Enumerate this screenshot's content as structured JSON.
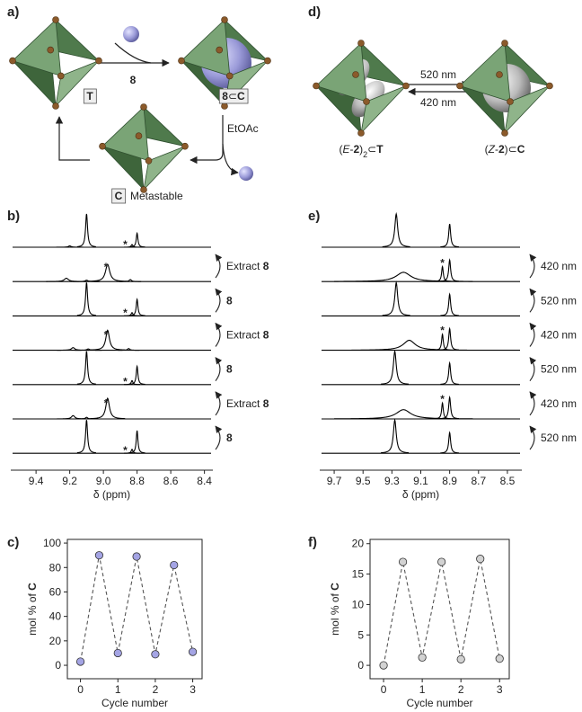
{
  "panel_labels": [
    "a)",
    "b)",
    "c)",
    "d)",
    "e)",
    "f)"
  ],
  "scheme_a": {
    "reagent": [
      {
        "text": "8",
        "style": "bold"
      }
    ],
    "label_T": [
      {
        "text": "T",
        "style": "bold"
      }
    ],
    "label_8C": [
      {
        "text": "8",
        "style": "bold"
      },
      {
        "text": "⊂"
      },
      {
        "text": "C",
        "style": "bold"
      }
    ],
    "label_C": [
      {
        "text": "C",
        "style": "bold"
      }
    ],
    "metastable": "Metastable",
    "solvent": "EtOAc"
  },
  "scheme_d": {
    "forward": {
      "text": "520 nm",
      "color": "#2eb12e"
    },
    "backward": {
      "text": "420 nm",
      "color": "#1ea5e8"
    },
    "label_left": [
      {
        "text": "("
      },
      {
        "text": "E",
        "style": "italic"
      },
      {
        "text": "-"
      },
      {
        "text": "2",
        "style": "bold"
      },
      {
        "text": ")"
      },
      {
        "text": "2",
        "style": "sub"
      },
      {
        "text": "⊂"
      },
      {
        "text": "T",
        "style": "bold"
      }
    ],
    "label_right": [
      {
        "text": "("
      },
      {
        "text": "Z",
        "style": "italic"
      },
      {
        "text": "-"
      },
      {
        "text": "2",
        "style": "bold"
      },
      {
        "text": ")⊂"
      },
      {
        "text": "C",
        "style": "bold"
      }
    ]
  },
  "chart_data": [
    {
      "type": "spectra",
      "x_label": "δ (ppm)",
      "xlim": [
        9.55,
        8.35
      ],
      "xticks": [
        9.4,
        9.2,
        {
          "value": 9,
          "label": "9.0"
        },
        8.8,
        8.6,
        8.4
      ],
      "color": "#000000",
      "star_color": "#e02020",
      "traces": [
        {
          "peaks": [
            {
              "x": 9.2,
              "height": 4,
              "width": 0.01
            },
            {
              "x": 9.1,
              "height": 100,
              "width": 0.007
            },
            {
              "x": 8.83,
              "height": 8,
              "width": 0.006
            },
            {
              "x": 8.8,
              "height": 42,
              "width": 0.006
            }
          ],
          "star": {
            "text": "*",
            "x": 8.87
          }
        },
        {
          "peaks": [
            {
              "x": 9.22,
              "height": 10,
              "width": 0.015
            },
            {
              "x": 9.1,
              "height": 4,
              "width": 0.01
            },
            {
              "x": 8.975,
              "height": 52,
              "width": 0.015
            },
            {
              "x": 8.84,
              "height": 6,
              "width": 0.008
            }
          ],
          "star": {
            "text": "*",
            "x": 8.985
          }
        },
        {
          "peaks": [
            {
              "x": 9.1,
              "height": 100,
              "width": 0.007
            },
            {
              "x": 8.83,
              "height": 10,
              "width": 0.006
            },
            {
              "x": 8.8,
              "height": 50,
              "width": 0.006
            }
          ],
          "star": {
            "text": "*",
            "x": 8.87
          }
        },
        {
          "peaks": [
            {
              "x": 9.18,
              "height": 8,
              "width": 0.012
            },
            {
              "x": 9.09,
              "height": 4,
              "width": 0.01
            },
            {
              "x": 8.975,
              "height": 60,
              "width": 0.013
            },
            {
              "x": 8.85,
              "height": 5,
              "width": 0.008
            }
          ],
          "star": {
            "text": "*",
            "x": 8.985
          }
        },
        {
          "peaks": [
            {
              "x": 9.1,
              "height": 100,
              "width": 0.007
            },
            {
              "x": 8.83,
              "height": 12,
              "width": 0.006
            },
            {
              "x": 8.8,
              "height": 55,
              "width": 0.006
            }
          ],
          "star": {
            "text": "*",
            "x": 8.87
          }
        },
        {
          "peaks": [
            {
              "x": 9.18,
              "height": 10,
              "width": 0.012
            },
            {
              "x": 9.1,
              "height": 5,
              "width": 0.008
            },
            {
              "x": 8.975,
              "height": 62,
              "width": 0.013
            }
          ],
          "star": {
            "text": "*",
            "x": 8.985
          }
        },
        {
          "peaks": [
            {
              "x": 9.1,
              "height": 100,
              "width": 0.007
            },
            {
              "x": 8.83,
              "height": 12,
              "width": 0.006
            },
            {
              "x": 8.8,
              "height": 68,
              "width": 0.006
            }
          ],
          "star": {
            "text": "*",
            "x": 8.87
          }
        }
      ],
      "annotations": [
        {
          "parts": [
            {
              "text": "Extract "
            },
            {
              "text": "8",
              "style": "bold"
            }
          ]
        },
        {
          "parts": [
            {
              "text": "8",
              "style": "bold"
            }
          ]
        },
        {
          "parts": [
            {
              "text": "Extract "
            },
            {
              "text": "8",
              "style": "bold"
            }
          ]
        },
        {
          "parts": [
            {
              "text": "8",
              "style": "bold"
            }
          ]
        },
        {
          "parts": [
            {
              "text": "Extract "
            },
            {
              "text": "8",
              "style": "bold"
            }
          ]
        },
        {
          "parts": [
            {
              "text": "8",
              "style": "bold"
            }
          ]
        }
      ]
    },
    {
      "type": "spectra",
      "x_label": "δ (ppm)",
      "xlim": [
        9.8,
        8.4
      ],
      "xticks": [
        9.7,
        9.5,
        9.3,
        9.1,
        8.9,
        8.7,
        8.5
      ],
      "color": "#000000",
      "star_color": "#e02020",
      "traces": [
        {
          "peaks": [
            {
              "x": 9.27,
              "height": 100,
              "width": 0.012
            },
            {
              "x": 8.9,
              "height": 70,
              "width": 0.008
            }
          ]
        },
        {
          "peaks": [
            {
              "x": 9.22,
              "height": 28,
              "width": 0.06
            },
            {
              "x": 8.95,
              "height": 45,
              "width": 0.007
            },
            {
              "x": 8.9,
              "height": 65,
              "width": 0.008
            }
          ],
          "star": {
            "text": "*",
            "x": 8.95
          }
        },
        {
          "peaks": [
            {
              "x": 9.27,
              "height": 100,
              "width": 0.012
            },
            {
              "x": 8.9,
              "height": 65,
              "width": 0.008
            }
          ]
        },
        {
          "peaks": [
            {
              "x": 9.18,
              "height": 30,
              "width": 0.05
            },
            {
              "x": 8.95,
              "height": 48,
              "width": 0.007
            },
            {
              "x": 8.9,
              "height": 65,
              "width": 0.008
            }
          ],
          "star": {
            "text": "*",
            "x": 8.95
          }
        },
        {
          "peaks": [
            {
              "x": 9.28,
              "height": 100,
              "width": 0.012
            },
            {
              "x": 8.9,
              "height": 65,
              "width": 0.008
            }
          ]
        },
        {
          "peaks": [
            {
              "x": 9.22,
              "height": 28,
              "width": 0.06
            },
            {
              "x": 8.95,
              "height": 48,
              "width": 0.007
            },
            {
              "x": 8.9,
              "height": 65,
              "width": 0.008
            }
          ],
          "star": {
            "text": "*",
            "x": 8.95
          }
        },
        {
          "peaks": [
            {
              "x": 9.28,
              "height": 100,
              "width": 0.012
            },
            {
              "x": 8.9,
              "height": 62,
              "width": 0.008
            }
          ]
        }
      ],
      "annotations": [
        {
          "parts": [
            {
              "text": "420 nm"
            }
          ],
          "color": "#1ea5e8"
        },
        {
          "parts": [
            {
              "text": "520 nm"
            }
          ],
          "color": "#2eb12e"
        },
        {
          "parts": [
            {
              "text": "420 nm"
            }
          ],
          "color": "#1ea5e8"
        },
        {
          "parts": [
            {
              "text": "520 nm"
            }
          ],
          "color": "#2eb12e"
        },
        {
          "parts": [
            {
              "text": "420 nm"
            }
          ],
          "color": "#1ea5e8"
        },
        {
          "parts": [
            {
              "text": "520 nm"
            }
          ],
          "color": "#2eb12e"
        }
      ]
    },
    {
      "type": "scatter",
      "x_label": "Cycle number",
      "y_label": [
        {
          "text": "mol % of "
        },
        {
          "text": "C",
          "style": "bold"
        }
      ],
      "x": [
        0,
        0.5,
        1,
        1.5,
        2,
        2.5,
        3
      ],
      "values": [
        3,
        90,
        10,
        89,
        9,
        82,
        11
      ],
      "color": "#a4a4e4",
      "line_color": "#555555",
      "line_style": "dashed",
      "xlim": [
        -0.35,
        3.25
      ],
      "ylim": [
        -11,
        103
      ],
      "xticks": [
        0,
        1,
        2,
        3
      ],
      "yticks": [
        0,
        20,
        40,
        60,
        80,
        100
      ]
    },
    {
      "type": "scatter",
      "x_label": "Cycle number",
      "y_label": [
        {
          "text": "mol % of "
        },
        {
          "text": "C",
          "style": "bold"
        }
      ],
      "x": [
        0,
        0.5,
        1,
        1.5,
        2,
        2.5,
        3
      ],
      "values": [
        0,
        17,
        1.3,
        17,
        1,
        17.5,
        1.1
      ],
      "color": "#d2d2d2",
      "line_color": "#555555",
      "line_style": "dashed",
      "xlim": [
        -0.35,
        3.25
      ],
      "ylim": [
        -2.2,
        20.7
      ],
      "xticks": [
        0,
        1,
        2,
        3
      ],
      "yticks": [
        0,
        5,
        10,
        15,
        20
      ]
    }
  ]
}
